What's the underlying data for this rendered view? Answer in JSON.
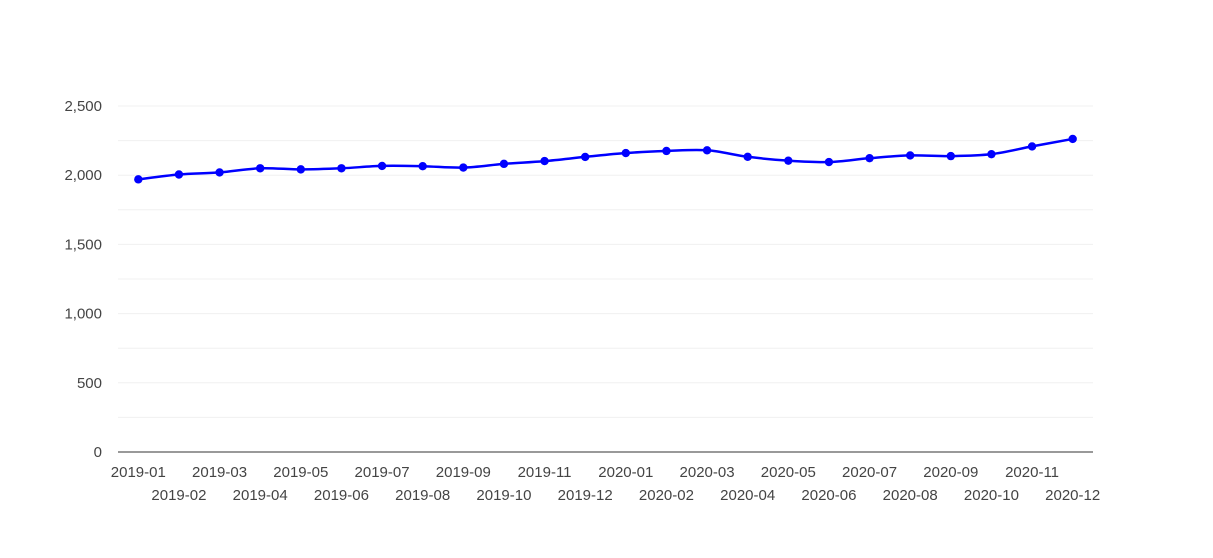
{
  "chart_data": {
    "type": "line",
    "title": "",
    "xlabel": "",
    "ylabel": "",
    "ylim": [
      0,
      2500
    ],
    "y_ticks": [
      0,
      500,
      1000,
      1500,
      2000,
      2500
    ],
    "y_tick_labels": [
      "0",
      "500",
      "1,000",
      "1,500",
      "2,000",
      "2,500"
    ],
    "grid": true,
    "legend": "none",
    "categories": [
      "2019-01",
      "2019-02",
      "2019-03",
      "2019-04",
      "2019-05",
      "2019-06",
      "2019-07",
      "2019-08",
      "2019-09",
      "2019-10",
      "2019-11",
      "2019-12",
      "2020-01",
      "2020-02",
      "2020-03",
      "2020-04",
      "2020-05",
      "2020-06",
      "2020-07",
      "2020-08",
      "2020-09",
      "2020-10",
      "2020-11",
      "2020-12"
    ],
    "series": [
      {
        "values": [
          1970,
          2005,
          2020,
          2050,
          2042,
          2050,
          2067,
          2065,
          2055,
          2082,
          2102,
          2132,
          2160,
          2175,
          2180,
          2133,
          2105,
          2095,
          2123,
          2143,
          2138,
          2152,
          2208,
          2262
        ],
        "color": "#0000ff"
      }
    ],
    "colors": {
      "line": "#0000ff",
      "grid": "#f0f0f0",
      "axis": "#333333"
    }
  }
}
